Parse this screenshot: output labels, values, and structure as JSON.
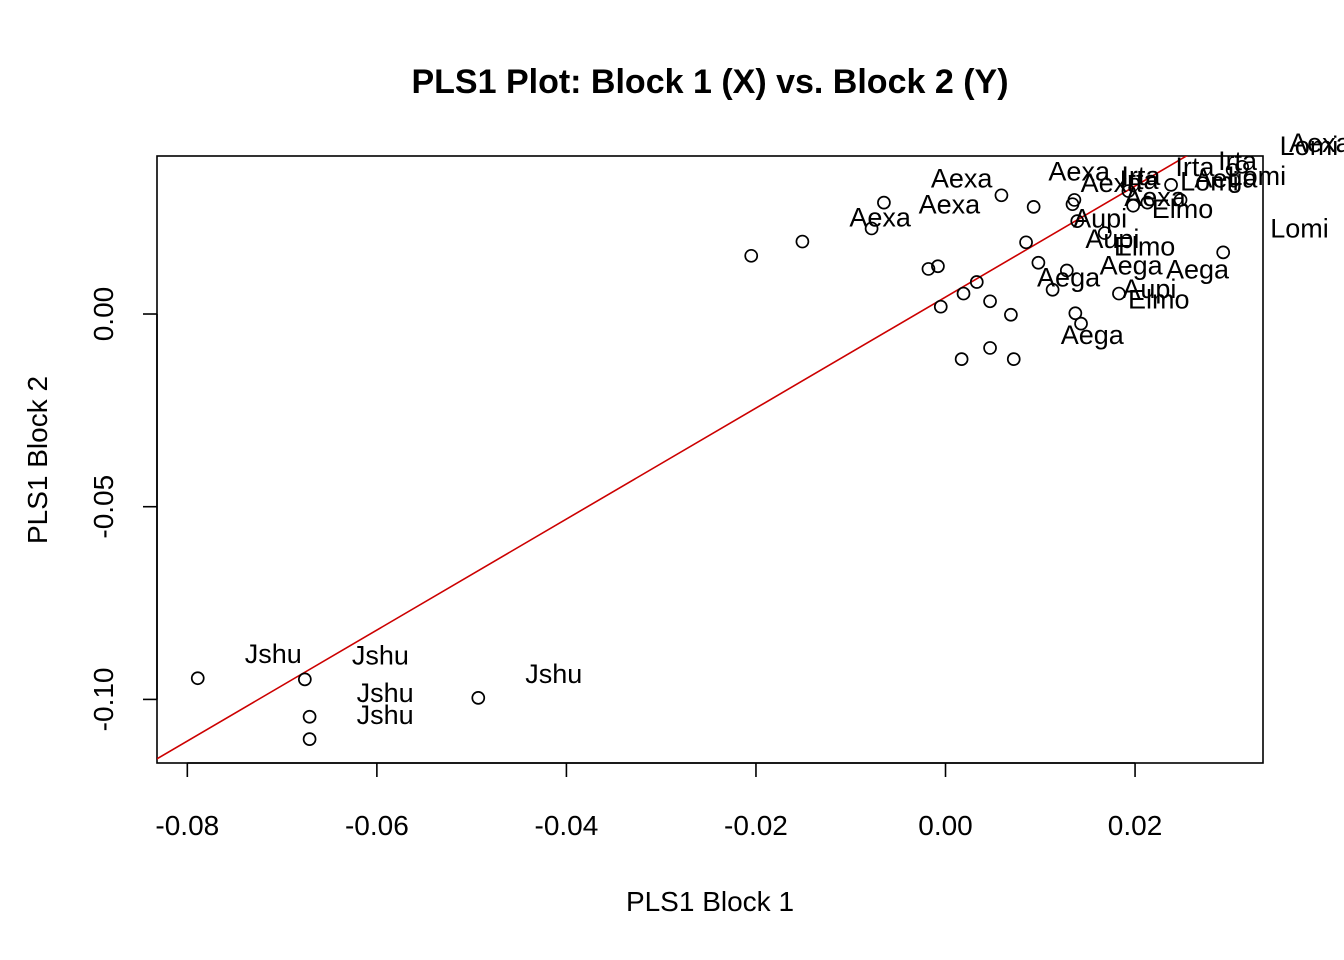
{
  "chart_data": {
    "type": "scatter",
    "title": "PLS1 Plot: Block 1 (X) vs. Block 2 (Y)",
    "xlabel": "PLS1 Block 1",
    "ylabel": "PLS1 Block 2",
    "xlim": [
      -0.0832,
      0.0335
    ],
    "ylim": [
      -0.1165,
      0.041
    ],
    "xticks": [
      -0.08,
      -0.06,
      -0.04,
      -0.02,
      0.0,
      0.02
    ],
    "xtick_labels": [
      "-0.08",
      "-0.06",
      "-0.04",
      "-0.02",
      "0.00",
      "0.02"
    ],
    "yticks": [
      -0.1,
      -0.05,
      0.0
    ],
    "ytick_labels": [
      "-0.10",
      "-0.05",
      "0.00"
    ],
    "grid": false,
    "point_color": "#000000",
    "fit_line_color": "#cc0000",
    "fit_line": {
      "slope": 1.44,
      "intercept": 0.0044
    },
    "points": [
      {
        "x": -0.0789,
        "y": -0.0945,
        "label": "Jshu"
      },
      {
        "x": -0.0676,
        "y": -0.0948,
        "label": "Jshu"
      },
      {
        "x": -0.0671,
        "y": -0.1045,
        "label": "Jshu"
      },
      {
        "x": -0.0671,
        "y": -0.1103,
        "label": "Jshu"
      },
      {
        "x": -0.0493,
        "y": -0.0996,
        "label": "Jshu"
      },
      {
        "x": -0.0205,
        "y": 0.0151,
        "label": ""
      },
      {
        "x": -0.0151,
        "y": 0.0188,
        "label": "Aexa"
      },
      {
        "x": -0.0078,
        "y": 0.0222,
        "label": "Aexa"
      },
      {
        "x": -0.0065,
        "y": 0.0289,
        "label": "Aexa"
      },
      {
        "x": -0.0018,
        "y": 0.0117,
        "label": ""
      },
      {
        "x": -0.0008,
        "y": 0.0124,
        "label": ""
      },
      {
        "x": -0.0005,
        "y": 0.0019,
        "label": ""
      },
      {
        "x": 0.0019,
        "y": 0.0053,
        "label": ""
      },
      {
        "x": 0.0033,
        "y": 0.0083,
        "label": ""
      },
      {
        "x": 0.0017,
        "y": -0.0117,
        "label": ""
      },
      {
        "x": 0.0047,
        "y": -0.0088,
        "label": ""
      },
      {
        "x": 0.0047,
        "y": 0.0033,
        "label": "Aega"
      },
      {
        "x": 0.0059,
        "y": 0.0308,
        "label": "Aexa"
      },
      {
        "x": 0.0069,
        "y": -0.0002,
        "label": ""
      },
      {
        "x": 0.0072,
        "y": -0.0117,
        "label": "Aega"
      },
      {
        "x": 0.0085,
        "y": 0.0186,
        "label": "Aupi"
      },
      {
        "x": 0.0093,
        "y": 0.0278,
        "label": "Aexa"
      },
      {
        "x": 0.0098,
        "y": 0.0133,
        "label": "Aupi"
      },
      {
        "x": 0.0113,
        "y": 0.0063,
        "label": "Aega"
      },
      {
        "x": 0.0128,
        "y": 0.0113,
        "label": "Elmo"
      },
      {
        "x": 0.0134,
        "y": 0.0285,
        "label": "Irta"
      },
      {
        "x": 0.0136,
        "y": 0.0296,
        "label": "Irta"
      },
      {
        "x": 0.0137,
        "y": 0.0002,
        "label": "Aupi"
      },
      {
        "x": 0.0139,
        "y": 0.0241,
        "label": "Aexa"
      },
      {
        "x": 0.0143,
        "y": -0.0025,
        "label": "Elmo"
      },
      {
        "x": 0.0168,
        "y": 0.021,
        "label": "Elmo"
      },
      {
        "x": 0.0183,
        "y": 0.0053,
        "label": "Aega"
      },
      {
        "x": 0.0193,
        "y": 0.0319,
        "label": "Irta"
      },
      {
        "x": 0.0198,
        "y": 0.0281,
        "label": "Lomi"
      },
      {
        "x": 0.0213,
        "y": 0.0289,
        "label": "Aega"
      },
      {
        "x": 0.0238,
        "y": 0.0335,
        "label": "Irta"
      },
      {
        "x": 0.0248,
        "y": 0.0296,
        "label": "Lomi"
      },
      {
        "x": 0.0293,
        "y": 0.016,
        "label": "Lomi"
      },
      {
        "x": 0.0303,
        "y": 0.0374,
        "label": "Lomi"
      },
      {
        "x": 0.0313,
        "y": 0.0382,
        "label": "Aexa"
      }
    ]
  }
}
